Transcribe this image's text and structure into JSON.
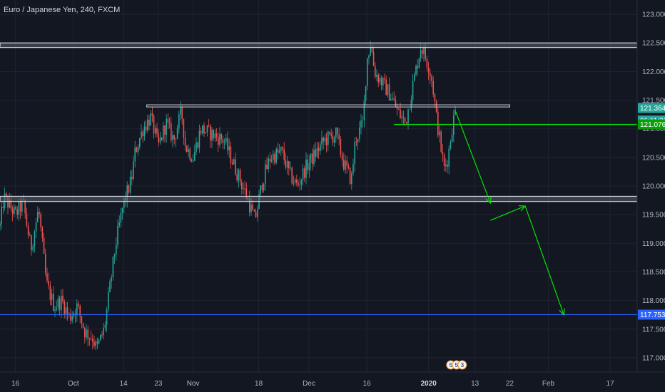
{
  "header": {
    "symbol_title": "Euro / Japanese Yen, 240, FXCM"
  },
  "colors": {
    "background": "#131722",
    "grid": "#1f2430",
    "axis_text": "#b2b5be",
    "bull_candle": "#26a69a",
    "bear_candle": "#ef5350",
    "support_resistance": "#d1d4dc",
    "annotation_green": "#00e600",
    "target_line_blue": "#2962ff",
    "price_badge_teal": "#26a69a",
    "price_badge_green": "#0b9e0b"
  },
  "chart_data": {
    "type": "candlestick",
    "instrument": "Euro / Japanese Yen",
    "timeframe": "240",
    "source": "FXCM",
    "y_axis": {
      "range": [
        116.75,
        123.25
      ],
      "ticks": [
        {
          "value": 123.0,
          "label": "123.000"
        },
        {
          "value": 122.5,
          "label": "122.500"
        },
        {
          "value": 122.0,
          "label": "122.000"
        },
        {
          "value": 121.5,
          "label": "121.500"
        },
        {
          "value": 121.0,
          "label": "121.000"
        },
        {
          "value": 120.5,
          "label": "120.500"
        },
        {
          "value": 120.0,
          "label": "120.000"
        },
        {
          "value": 119.5,
          "label": "119.500"
        },
        {
          "value": 119.0,
          "label": "119.000"
        },
        {
          "value": 118.5,
          "label": "118.500"
        },
        {
          "value": 118.0,
          "label": "118.000"
        },
        {
          "value": 117.5,
          "label": "117.500"
        },
        {
          "value": 117.0,
          "label": "117.000"
        }
      ]
    },
    "x_axis": {
      "range": [
        "2019-09-12",
        "2020-02-24"
      ],
      "ticks": [
        {
          "date": "2019-09-16",
          "label": "16"
        },
        {
          "date": "2019-10-01",
          "label": "Oct"
        },
        {
          "date": "2019-10-14",
          "label": "14"
        },
        {
          "date": "2019-10-23",
          "label": "23"
        },
        {
          "date": "2019-11-01",
          "label": "Nov"
        },
        {
          "date": "2019-11-18",
          "label": "18"
        },
        {
          "date": "2019-12-01",
          "label": "Dec"
        },
        {
          "date": "2019-12-16",
          "label": "16"
        },
        {
          "date": "2020-01-01",
          "label": "2020",
          "bold": true
        },
        {
          "date": "2020-01-13",
          "label": "13"
        },
        {
          "date": "2020-01-22",
          "label": "22"
        },
        {
          "date": "2020-02-01",
          "label": "Feb"
        },
        {
          "date": "2020-02-17",
          "label": "17"
        }
      ]
    },
    "price_path": [
      [
        "2019-09-12",
        119.3
      ],
      [
        "2019-09-13",
        119.8
      ],
      [
        "2019-09-16",
        119.5
      ],
      [
        "2019-09-18",
        119.7
      ],
      [
        "2019-09-20",
        118.9
      ],
      [
        "2019-09-22",
        119.6
      ],
      [
        "2019-09-24",
        118.3
      ],
      [
        "2019-09-26",
        117.9
      ],
      [
        "2019-09-28",
        118.0
      ],
      [
        "2019-09-30",
        117.7
      ],
      [
        "2019-10-02",
        117.9
      ],
      [
        "2019-10-04",
        117.45
      ],
      [
        "2019-10-06",
        117.35
      ],
      [
        "2019-10-07",
        117.15
      ],
      [
        "2019-10-09",
        117.5
      ],
      [
        "2019-10-10",
        118.0
      ],
      [
        "2019-10-12",
        119.0
      ],
      [
        "2019-10-14",
        119.7
      ],
      [
        "2019-10-16",
        120.1
      ],
      [
        "2019-10-17",
        120.6
      ],
      [
        "2019-10-19",
        121.0
      ],
      [
        "2019-10-21",
        121.2
      ],
      [
        "2019-10-23",
        120.7
      ],
      [
        "2019-10-25",
        121.1
      ],
      [
        "2019-10-27",
        120.8
      ],
      [
        "2019-10-29",
        121.3
      ],
      [
        "2019-10-30",
        120.7
      ],
      [
        "2019-11-01",
        120.5
      ],
      [
        "2019-11-03",
        121.0
      ],
      [
        "2019-11-06",
        120.9
      ],
      [
        "2019-11-09",
        120.8
      ],
      [
        "2019-11-12",
        120.3
      ],
      [
        "2019-11-15",
        119.8
      ],
      [
        "2019-11-17",
        119.4
      ],
      [
        "2019-11-19",
        120.1
      ],
      [
        "2019-11-21",
        120.5
      ],
      [
        "2019-11-24",
        120.6
      ],
      [
        "2019-11-26",
        120.2
      ],
      [
        "2019-11-28",
        120.0
      ],
      [
        "2019-11-30",
        120.3
      ],
      [
        "2019-12-03",
        120.6
      ],
      [
        "2019-12-05",
        120.8
      ],
      [
        "2019-12-08",
        120.9
      ],
      [
        "2019-12-10",
        120.4
      ],
      [
        "2019-12-12",
        120.1
      ],
      [
        "2019-12-13",
        120.8
      ],
      [
        "2019-12-15",
        121.1
      ],
      [
        "2019-12-16",
        122.2
      ],
      [
        "2019-12-17",
        122.5
      ],
      [
        "2019-12-18",
        122.0
      ],
      [
        "2019-12-20",
        121.8
      ],
      [
        "2019-12-22",
        121.6
      ],
      [
        "2019-12-24",
        121.3
      ],
      [
        "2019-12-26",
        121.1
      ],
      [
        "2019-12-28",
        121.8
      ],
      [
        "2019-12-30",
        122.45
      ],
      [
        "2020-01-01",
        122.1
      ],
      [
        "2020-01-02",
        121.8
      ],
      [
        "2020-01-03",
        121.2
      ],
      [
        "2020-01-05",
        120.3
      ],
      [
        "2020-01-06",
        120.5
      ],
      [
        "2020-01-07",
        121.0
      ],
      [
        "2020-01-08",
        121.35
      ]
    ],
    "current_price": {
      "value": 121.364,
      "label": "121.364"
    },
    "countdown": {
      "label": "01:11:31"
    },
    "horizontal_levels": [
      {
        "name": "resistance-zone-top",
        "from": "2019-09-12",
        "to": "2020-02-24",
        "y_low": 122.42,
        "y_high": 122.5
      },
      {
        "name": "resistance-line-mid",
        "from": "2019-10-20",
        "to": "2020-01-22",
        "y": 121.4
      },
      {
        "name": "green-breakout-line",
        "from": "2019-12-23",
        "to": "2020-02-24",
        "y": 121.076,
        "label": "121.076"
      },
      {
        "name": "support-zone",
        "from": "2019-09-12",
        "to": "2020-02-24",
        "y_low": 119.73,
        "y_high": 119.82
      },
      {
        "name": "target-line",
        "from": "2019-09-12",
        "to": "2020-02-24",
        "y": 117.753,
        "label": "117.753"
      }
    ],
    "projection_arrows": [
      {
        "from": [
          "2020-01-08",
          121.3
        ],
        "to": [
          "2020-01-17",
          119.7
        ]
      },
      {
        "from": [
          "2020-01-17",
          119.4
        ],
        "to": [
          "2020-01-26",
          119.65
        ]
      },
      {
        "from": [
          "2020-01-26",
          119.65
        ],
        "to": [
          "2020-02-05",
          117.75
        ]
      }
    ],
    "event_badges": [
      "5",
      "5",
      "3"
    ]
  }
}
